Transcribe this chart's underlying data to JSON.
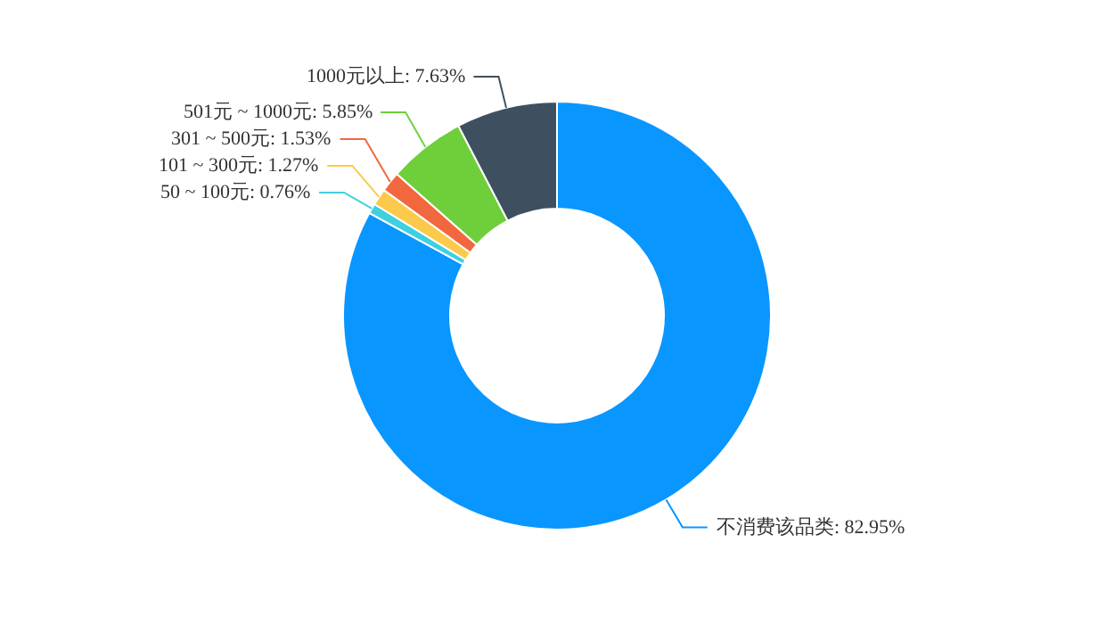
{
  "chart_data": {
    "type": "donut",
    "categories": [
      "不消费该品类",
      "50 ~ 100元",
      "101 ~ 300元",
      "301 ~ 500元",
      "501元 ~ 1000元",
      "1000元以上"
    ],
    "values": [
      82.95,
      0.76,
      1.27,
      1.53,
      5.85,
      7.63
    ],
    "value_labels": [
      "82.95%",
      "0.76%",
      "1.27%",
      "1.53%",
      "5.85%",
      "7.63%"
    ],
    "colors": [
      "#0a96ff",
      "#3fd0e0",
      "#fcc94a",
      "#f2683e",
      "#6fcf3a",
      "#3e5060"
    ]
  }
}
